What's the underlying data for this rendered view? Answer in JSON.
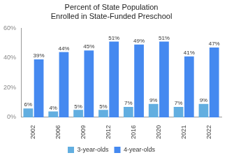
{
  "chart_data": {
    "type": "bar",
    "title": [
      "Percent of State Population",
      "Enrolled in State-Funded Preschool"
    ],
    "categories": [
      "2002",
      "2006",
      "2009",
      "2012",
      "2016",
      "2020",
      "2021",
      "2022"
    ],
    "series": [
      {
        "name": "3-year-olds",
        "color": "#62aee0",
        "values": [
          6,
          4,
          5,
          5,
          7,
          9,
          7,
          9
        ],
        "value_labels": [
          "6%",
          "4%",
          "5%",
          "5%",
          "7%",
          "9%",
          "7%",
          "9%"
        ]
      },
      {
        "name": "4-year-olds",
        "color": "#4589f0",
        "values": [
          39,
          44,
          45,
          51,
          49,
          51,
          41,
          47
        ],
        "value_labels": [
          "39%",
          "44%",
          "45%",
          "51%",
          "49%",
          "51%",
          "41%",
          "47%"
        ]
      }
    ],
    "ylim": [
      0,
      60
    ],
    "yticks": [
      {
        "value": 0,
        "label": "0%"
      },
      {
        "value": 20,
        "label": "20%"
      },
      {
        "value": 40,
        "label": "40%"
      },
      {
        "value": 60,
        "label": "60%"
      }
    ],
    "grid": false,
    "legend": "bottom",
    "data_labels": true
  }
}
